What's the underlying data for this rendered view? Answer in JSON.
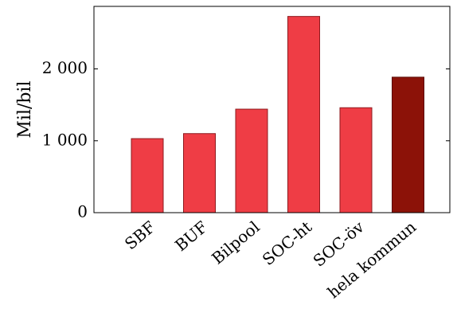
{
  "chart_data": {
    "type": "bar",
    "title": "",
    "xlabel": "",
    "ylabel": "Mil/bil",
    "categories": [
      "SBF",
      "BUF",
      "Bilpool",
      "SOC-ht",
      "SOC-öv",
      "hela kommun"
    ],
    "values": [
      1030,
      1100,
      1440,
      2730,
      1460,
      1885
    ],
    "ylim": [
      0,
      2870
    ],
    "yticks": [
      0,
      1000,
      2000
    ],
    "ytick_labels": [
      "0",
      "1 000",
      "2 000"
    ],
    "x_tick_rotation_deg": -40,
    "grid": false,
    "legend": "none",
    "colors": {
      "bar_fill": "#ef3d45",
      "bar_stroke": "#8e1a1e",
      "highlight_fill": "#8c1208",
      "highlight_stroke": "#5a0b05",
      "highlight_index": 5
    }
  }
}
